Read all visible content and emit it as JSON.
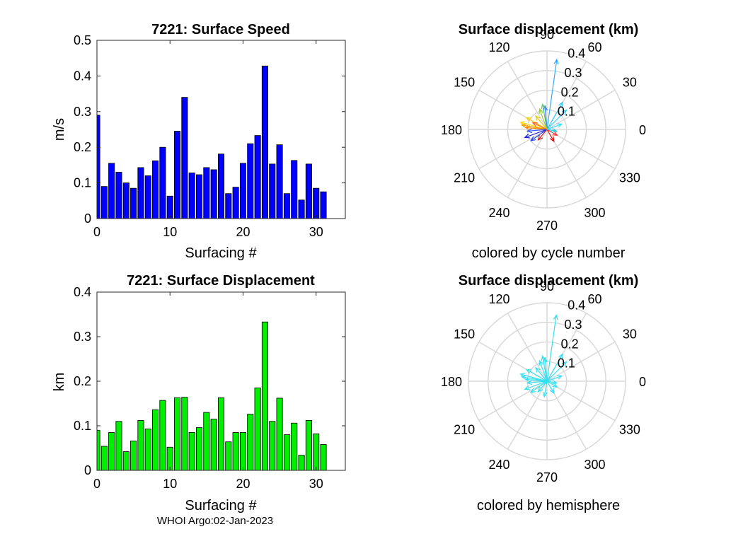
{
  "footer": "WHOI Argo:02-Jan-2023",
  "chart_data": [
    {
      "type": "bar",
      "title": "7221: Surface Speed",
      "xlabel": "Surfacing #",
      "ylabel": "m/s",
      "bar_color": "#0000ff",
      "xlim": [
        0,
        34
      ],
      "ylim": [
        0,
        0.5
      ],
      "xticks": [
        0,
        10,
        20,
        30
      ],
      "yticks": [
        0,
        0.1,
        0.2,
        0.3,
        0.4,
        0.5
      ],
      "x": [
        0,
        1,
        2,
        3,
        4,
        5,
        6,
        7,
        8,
        9,
        10,
        11,
        12,
        13,
        14,
        15,
        16,
        17,
        18,
        19,
        20,
        21,
        22,
        23,
        24,
        25,
        26,
        27,
        28,
        29,
        30,
        31
      ],
      "values": [
        0.29,
        0.09,
        0.155,
        0.13,
        0.1,
        0.085,
        0.143,
        0.12,
        0.162,
        0.2,
        0.063,
        0.245,
        0.34,
        0.128,
        0.123,
        0.143,
        0.137,
        0.181,
        0.07,
        0.088,
        0.155,
        0.21,
        0.233,
        0.428,
        0.153,
        0.207,
        0.07,
        0.163,
        0.052,
        0.153,
        0.085,
        0.075
      ]
    },
    {
      "type": "bar",
      "title": "7221: Surface Displacement",
      "xlabel": "Surfacing #",
      "ylabel": "km",
      "bar_color": "#00ee00",
      "xlim": [
        0,
        34
      ],
      "ylim": [
        0,
        0.4
      ],
      "xticks": [
        0,
        10,
        20,
        30
      ],
      "yticks": [
        0,
        0.1,
        0.2,
        0.3,
        0.4
      ],
      "x": [
        0,
        1,
        2,
        3,
        4,
        5,
        6,
        7,
        8,
        9,
        10,
        11,
        12,
        13,
        14,
        15,
        16,
        17,
        18,
        19,
        20,
        21,
        22,
        23,
        24,
        25,
        26,
        27,
        28,
        29,
        30,
        31
      ],
      "values": [
        0.09,
        0.054,
        0.085,
        0.11,
        0.042,
        0.066,
        0.112,
        0.093,
        0.136,
        0.157,
        0.052,
        0.163,
        0.164,
        0.085,
        0.096,
        0.13,
        0.115,
        0.163,
        0.064,
        0.085,
        0.085,
        0.126,
        0.185,
        0.333,
        0.11,
        0.162,
        0.08,
        0.106,
        0.034,
        0.112,
        0.082,
        0.058
      ]
    },
    {
      "type": "polar",
      "title": "Surface displacement (km)",
      "caption": "colored by cycle number",
      "rlim": [
        0,
        0.4
      ],
      "rticks": [
        "0.1",
        "0.2",
        "0.3",
        "0.4"
      ],
      "theta_ticks": [
        "0",
        "30",
        "60",
        "90",
        "120",
        "150",
        "180",
        "210",
        "240",
        "270",
        "300",
        "330"
      ],
      "vectors": [
        {
          "theta": 82,
          "r": 0.36,
          "color": "#33aaff"
        },
        {
          "theta": 60,
          "r": 0.16,
          "color": "#33ccff"
        },
        {
          "theta": 45,
          "r": 0.14,
          "color": "#33ccff"
        },
        {
          "theta": 20,
          "r": 0.08,
          "color": "#33ddff"
        },
        {
          "theta": 95,
          "r": 0.12,
          "color": "#3377ff"
        },
        {
          "theta": 100,
          "r": 0.13,
          "color": "#55cc66"
        },
        {
          "theta": 110,
          "r": 0.11,
          "color": "#99cc44"
        },
        {
          "theta": 130,
          "r": 0.09,
          "color": "#ddcc22"
        },
        {
          "theta": 150,
          "r": 0.12,
          "color": "#ffcc00"
        },
        {
          "theta": 165,
          "r": 0.14,
          "color": "#ffdd00"
        },
        {
          "theta": 170,
          "r": 0.13,
          "color": "#ee9900"
        },
        {
          "theta": 175,
          "r": 0.11,
          "color": "#ff8800"
        },
        {
          "theta": 185,
          "r": 0.1,
          "color": "#3355ff"
        },
        {
          "theta": 200,
          "r": 0.12,
          "color": "#2222dd"
        },
        {
          "theta": 215,
          "r": 0.1,
          "color": "#2244ee"
        },
        {
          "theta": 230,
          "r": 0.07,
          "color": "#cc2222"
        },
        {
          "theta": 300,
          "r": 0.07,
          "color": "#dd1111"
        },
        {
          "theta": 330,
          "r": 0.06,
          "color": "#ff3333"
        },
        {
          "theta": 350,
          "r": 0.05,
          "color": "#22ccdd"
        },
        {
          "theta": 155,
          "r": 0.08,
          "color": "#ff6622"
        }
      ]
    },
    {
      "type": "polar",
      "title": "Surface displacement (km)",
      "caption": "colored by hemisphere",
      "rlim": [
        0,
        0.4
      ],
      "rticks": [
        "0.1",
        "0.2",
        "0.3",
        "0.4"
      ],
      "theta_ticks": [
        "0",
        "30",
        "60",
        "90",
        "120",
        "150",
        "180",
        "210",
        "240",
        "270",
        "300",
        "330"
      ],
      "vector_color": "#33e0f0",
      "vectors": [
        {
          "theta": 82,
          "r": 0.34
        },
        {
          "theta": 60,
          "r": 0.16
        },
        {
          "theta": 45,
          "r": 0.14
        },
        {
          "theta": 20,
          "r": 0.08
        },
        {
          "theta": 95,
          "r": 0.12
        },
        {
          "theta": 100,
          "r": 0.13
        },
        {
          "theta": 110,
          "r": 0.11
        },
        {
          "theta": 130,
          "r": 0.09
        },
        {
          "theta": 150,
          "r": 0.12
        },
        {
          "theta": 165,
          "r": 0.14
        },
        {
          "theta": 170,
          "r": 0.13
        },
        {
          "theta": 175,
          "r": 0.11
        },
        {
          "theta": 185,
          "r": 0.1
        },
        {
          "theta": 200,
          "r": 0.12
        },
        {
          "theta": 215,
          "r": 0.1
        },
        {
          "theta": 230,
          "r": 0.07
        },
        {
          "theta": 260,
          "r": 0.08
        },
        {
          "theta": 300,
          "r": 0.07
        },
        {
          "theta": 330,
          "r": 0.06
        },
        {
          "theta": 350,
          "r": 0.05
        }
      ]
    }
  ]
}
